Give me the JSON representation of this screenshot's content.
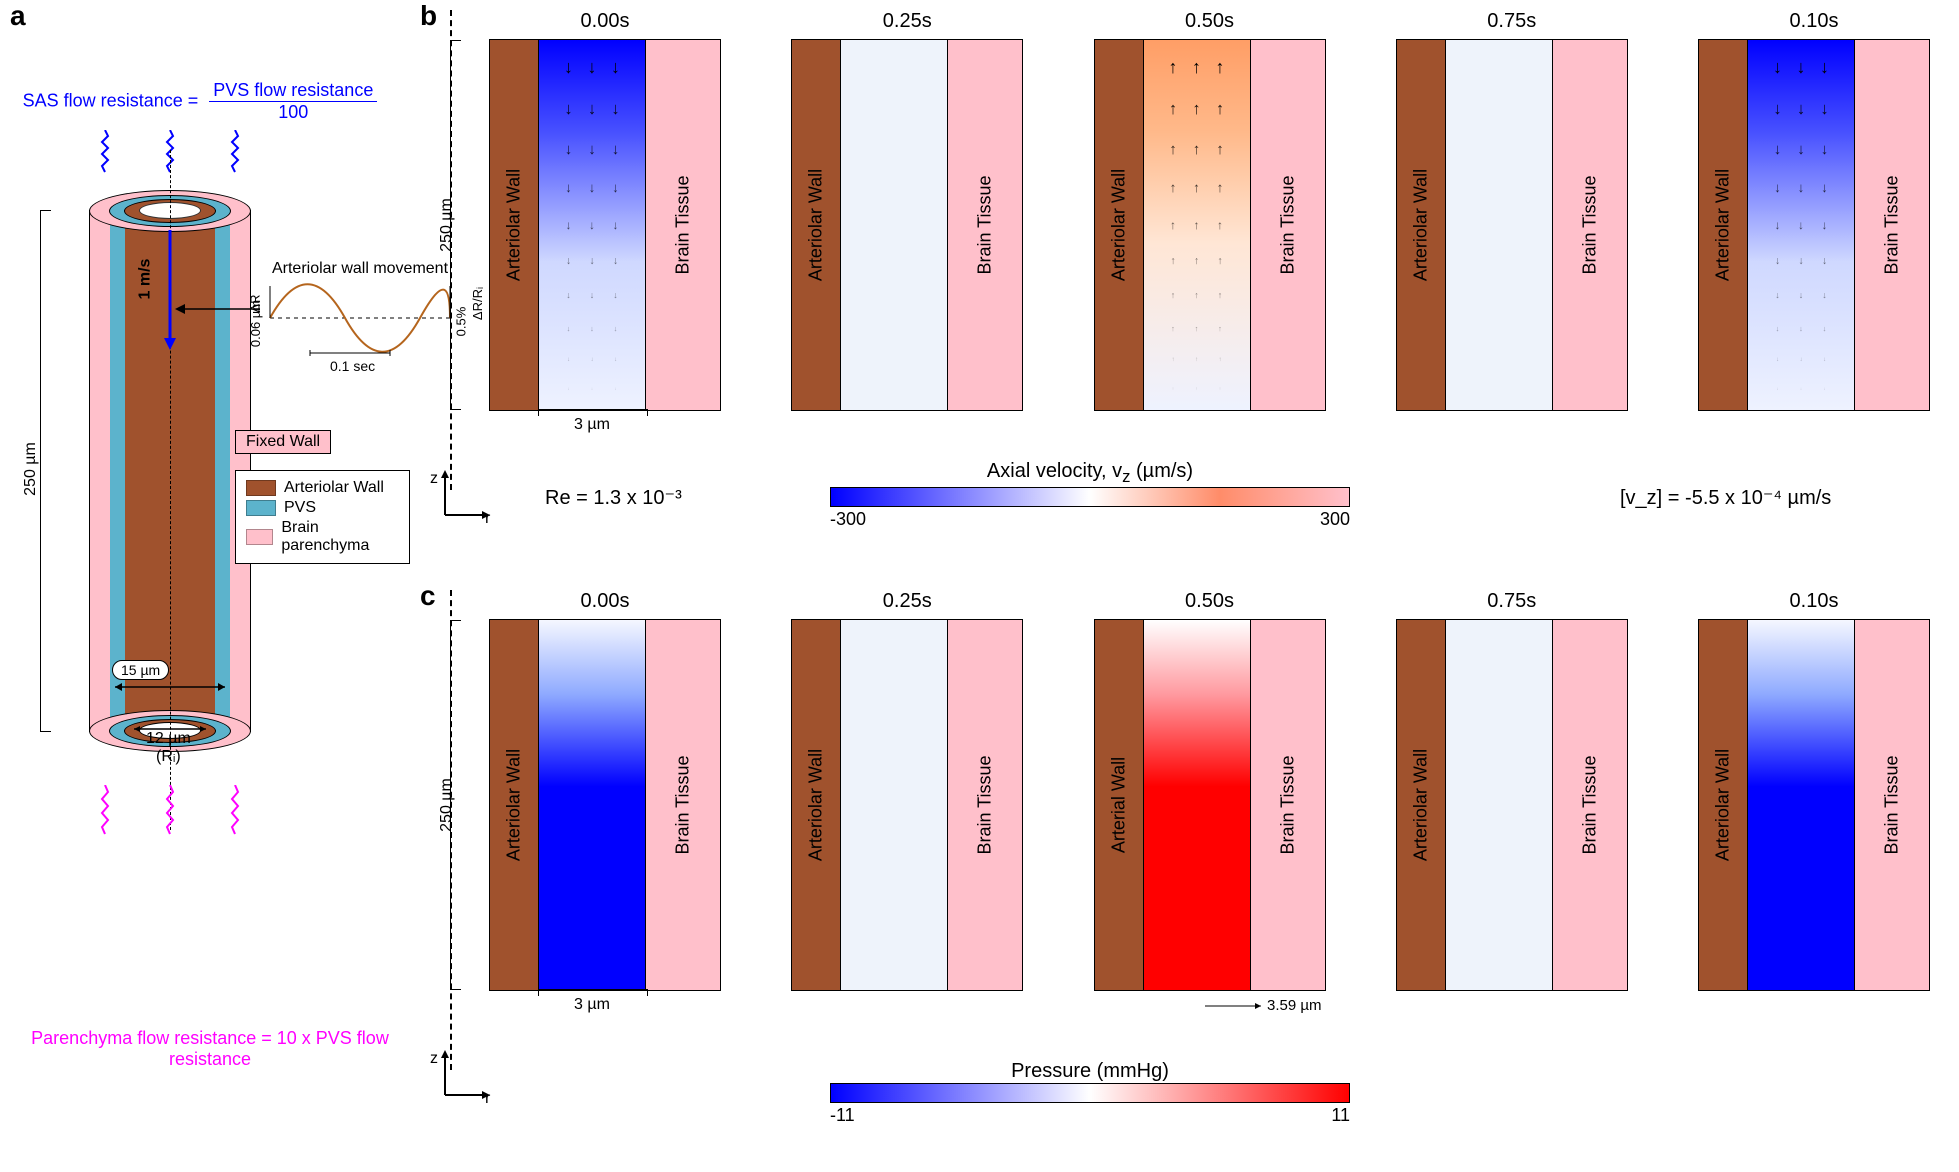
{
  "panel_labels": {
    "a": "a",
    "b": "b",
    "c": "c"
  },
  "colors": {
    "arteriolar_wall": "#a0522d",
    "pvs": "#5cb3cc",
    "brain_tissue": "#ffc0cb",
    "sas_text": "#0000ff",
    "parenchyma_text": "#ff00ff",
    "wave": "#b5651d",
    "vel_neg": "#0000ff",
    "vel_mid": "#ffffff",
    "vel_pos_mid": "#ff8c69",
    "vel_pos": "#ffc0cb",
    "pres_neg": "#0000ff",
    "pres_pos": "#ff0000"
  },
  "panel_a": {
    "sas_eq_lhs": "SAS flow resistance  =",
    "sas_eq_num": "PVS flow resistance",
    "sas_eq_den": "100",
    "parenchyma_eq": "Parenchyma flow resistance  = 10 x PVS flow resistance",
    "fixed_wall": "Fixed Wall",
    "legend": [
      {
        "label": "Arteriolar Wall",
        "color": "#a0522d"
      },
      {
        "label": "PVS",
        "color": "#5cb3cc"
      },
      {
        "label": "Brain parenchyma",
        "color": "#ffc0cb"
      }
    ],
    "height_label": "250 µm",
    "blood_vel": "1 m/s",
    "r_outer": "15 µm",
    "r_inner_value": "12 µm",
    "r_inner_name": "(Rᵢ)",
    "wave_title": "Arteriolar wall movement",
    "wave_dr_left": "0.06 µm",
    "wave_dr_sym_left": "ΔR",
    "wave_dr_right": "0.5%",
    "wave_dr_sym_right": "ΔR/Rᵢ",
    "wave_period": "0.1 sec"
  },
  "row_times": [
    "0.00s",
    "0.25s",
    "0.50s",
    "0.75s",
    "0.10s"
  ],
  "axis_r": "r",
  "axis_z": "z",
  "cross_labels": {
    "arteriolar": "Arteriolar Wall",
    "arterial": "Arterial Wall",
    "brain": "Brain Tissue"
  },
  "height_dim": "250 µm",
  "pvs_width": "3 µm",
  "panel_b": {
    "title_var": "Axial velocity, v",
    "title_sub": "z",
    "title_unit": " (µm/s)",
    "cbar_min": "-300",
    "cbar_max": "300",
    "reynolds": "Re = 1.3 x 10⁻³",
    "mean_vz": "[v_z] = -5.5 x 10⁻⁴ µm/s",
    "snapshots": [
      {
        "fill": "linear-gradient(to top, #eef2ff 0%, #cfd8ff 40%, #4851ff 75%, #0000ff 100%)",
        "arrows": "down"
      },
      {
        "fill": "#eef3fb",
        "arrows": "none"
      },
      {
        "fill": "linear-gradient(to top, #eef2ff 0%, #ffe6d5 45%, #ffb98a 75%, #ff9e66 100%)",
        "arrows": "up"
      },
      {
        "fill": "#eef3fb",
        "arrows": "none"
      },
      {
        "fill": "linear-gradient(to top, #eef2ff 0%, #cfd8ff 40%, #4851ff 75%, #0000ff 100%)",
        "arrows": "down"
      }
    ]
  },
  "panel_c": {
    "title": "Pressure (mmHg)",
    "cbar_min": "-11",
    "cbar_max": "11",
    "overlay_dim": "3.59 µm",
    "snapshots": [
      {
        "fill": "linear-gradient(to top, #0000ff 0%, #0000ff 55%, #8faaff 80%, #f5f7ff 100%)",
        "overlay": false,
        "aw_label_key": "arteriolar"
      },
      {
        "fill": "#eef3fb",
        "overlay": false,
        "aw_label_key": "arteriolar"
      },
      {
        "fill": "linear-gradient(to top, #ff0000 0%, #ff0000 55%, #ff9aa0 80%, #ffffff 100%)",
        "overlay": true,
        "aw_label_key": "arterial"
      },
      {
        "fill": "#eef3fb",
        "overlay": false,
        "aw_label_key": "arteriolar"
      },
      {
        "fill": "linear-gradient(to top, #0000ff 0%, #0000ff 55%, #8faaff 80%, #f5f7ff 100%)",
        "overlay": false,
        "aw_label_key": "arteriolar"
      }
    ]
  }
}
